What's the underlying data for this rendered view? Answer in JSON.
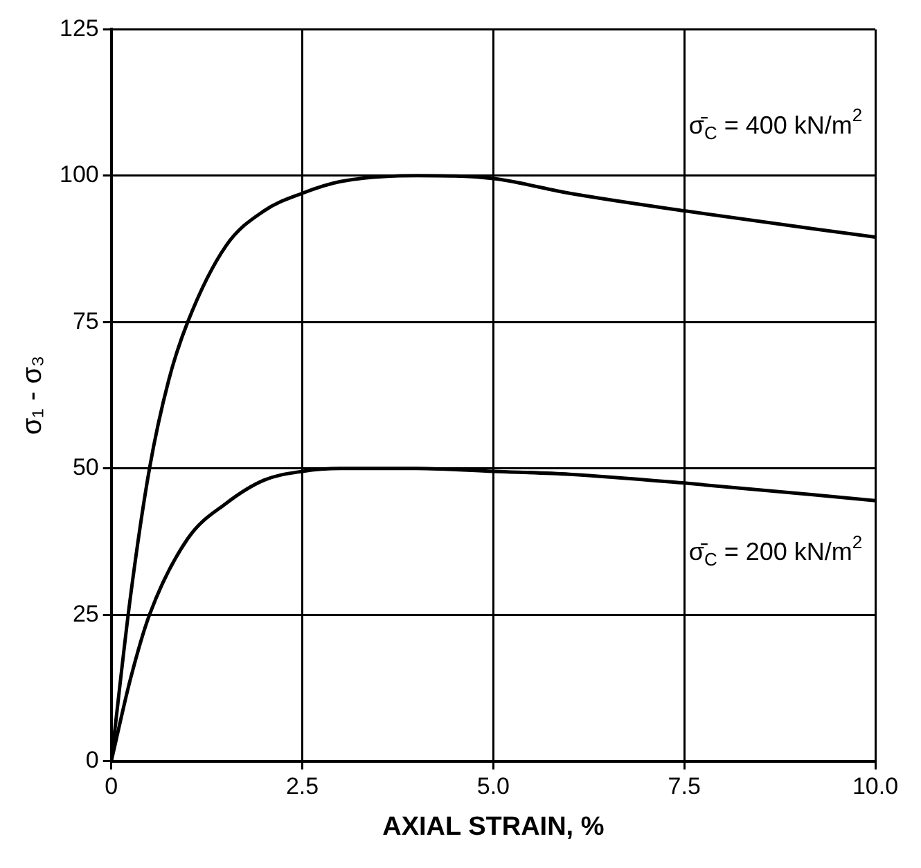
{
  "chart_data": {
    "type": "line",
    "xlabel": "AXIAL STRAIN, %",
    "ylabel": "σ₁ - σ₃",
    "xlim": [
      0,
      10
    ],
    "xticks": [
      0,
      2.5,
      {
        "value": 5,
        "label": "5.0"
      },
      7.5,
      {
        "value": 10,
        "label": "10.0"
      }
    ],
    "ylim": [
      0,
      125
    ],
    "yticks": [
      0,
      25,
      50,
      75,
      100,
      125
    ],
    "grid": true,
    "legend": false,
    "marker": "none",
    "line_style": "solid",
    "series": [
      {
        "color": "#000000",
        "x": [
          0,
          0.25,
          0.5,
          0.75,
          1,
          1.5,
          2,
          2.5,
          3,
          4,
          5,
          6,
          7.5,
          10
        ],
        "values": [
          0,
          28,
          50,
          65,
          75,
          88,
          94,
          97,
          99,
          100,
          99.5,
          97,
          94,
          89.5
        ]
      },
      {
        "color": "#000000",
        "x": [
          0,
          0.25,
          0.5,
          1,
          1.5,
          2,
          2.5,
          3,
          4,
          5,
          6,
          7.5,
          10
        ],
        "values": [
          0,
          14,
          25,
          38,
          44,
          48,
          49.5,
          50,
          50,
          49.5,
          49,
          47.5,
          44.5
        ]
      }
    ],
    "annotations": [
      "σ̄$_{C}$ = 400 kN/m$^{2}$",
      "σ̄$_{C}$ = 200 kN/m$^{2}$"
    ]
  }
}
